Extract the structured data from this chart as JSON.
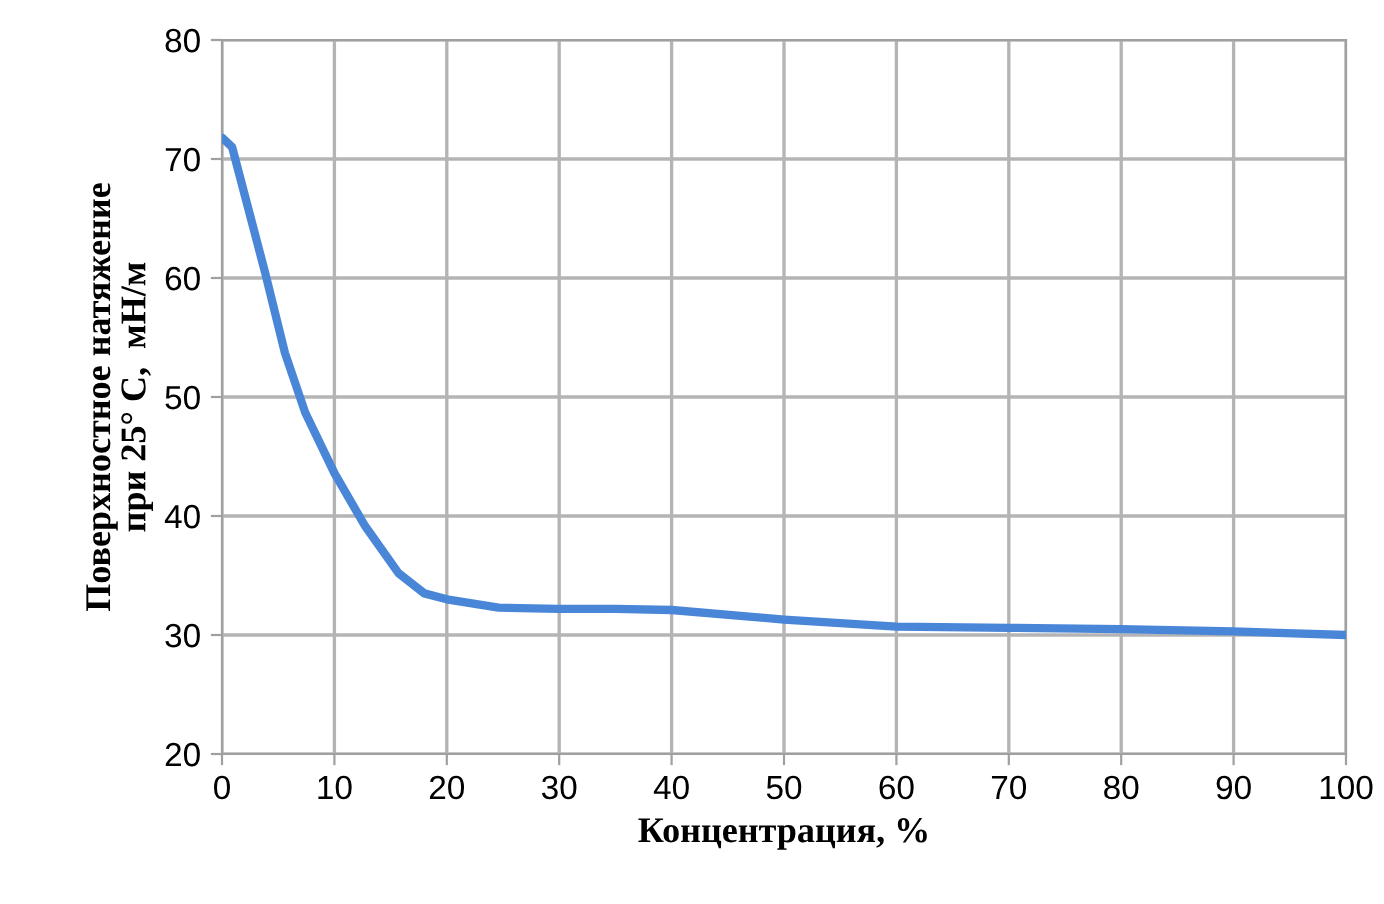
{
  "chart_data": {
    "type": "line",
    "xlabel": "Концентрация, %",
    "ylabel": "Поверхностное натяжение\nпри 25° С,  мН/м",
    "series": [
      {
        "color": "#4a86d8",
        "x": [
          0,
          0.9,
          3.85,
          5.6,
          7.4,
          10,
          12.7,
          15.7,
          18,
          20,
          24.6,
          29.9,
          35,
          40,
          50,
          60,
          70,
          80,
          90,
          100
        ],
        "values": [
          71.8,
          71.0,
          60.4,
          53.7,
          48.7,
          43.6,
          39.2,
          35.2,
          33.5,
          33.0,
          32.3,
          32.2,
          32.2,
          32.1,
          31.3,
          30.7,
          30.6,
          30.5,
          30.3,
          30.0
        ]
      }
    ],
    "xlim": [
      0,
      100
    ],
    "xticks": [
      0,
      10,
      20,
      30,
      40,
      50,
      60,
      70,
      80,
      90,
      100
    ],
    "ylim": [
      20,
      80
    ],
    "yticks": [
      20,
      30,
      40,
      50,
      60,
      70,
      80
    ],
    "grid": true,
    "legend": false,
    "marker": "none",
    "line_style": "solid"
  }
}
